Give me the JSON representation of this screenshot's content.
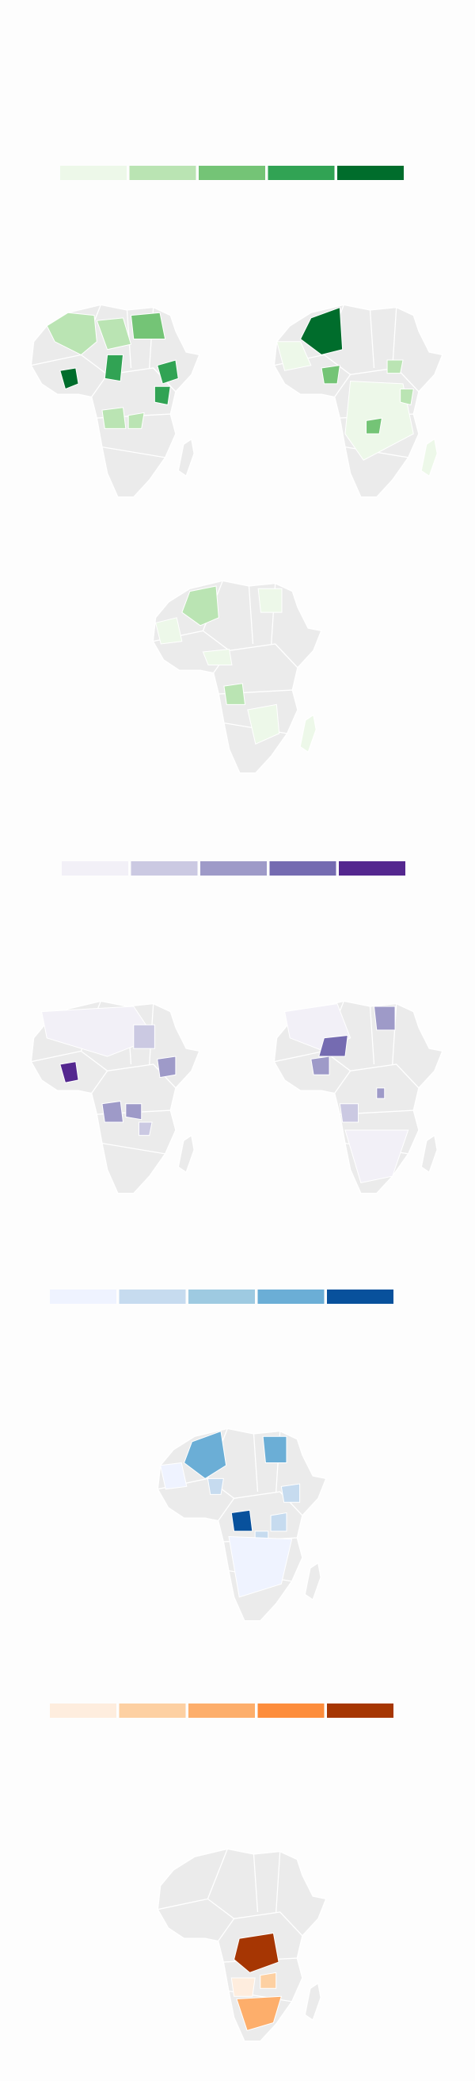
{
  "legends": [
    {
      "colors": [
        "#edf8e9",
        "#bae4b3",
        "#74c476",
        "#31a354",
        "#006d2c"
      ]
    },
    {
      "colors": [
        "#f2f0f7",
        "#cbc9e2",
        "#9e9ac8",
        "#756bb1",
        "#54278f"
      ]
    },
    {
      "colors": [
        "#eff3ff",
        "#c6dbef",
        "#9ecae1",
        "#6baed6",
        "#08519c"
      ]
    },
    {
      "colors": [
        "#feedde",
        "#fdd0a2",
        "#fdae6b",
        "#fd8d3c",
        "#a63603"
      ]
    }
  ]
}
